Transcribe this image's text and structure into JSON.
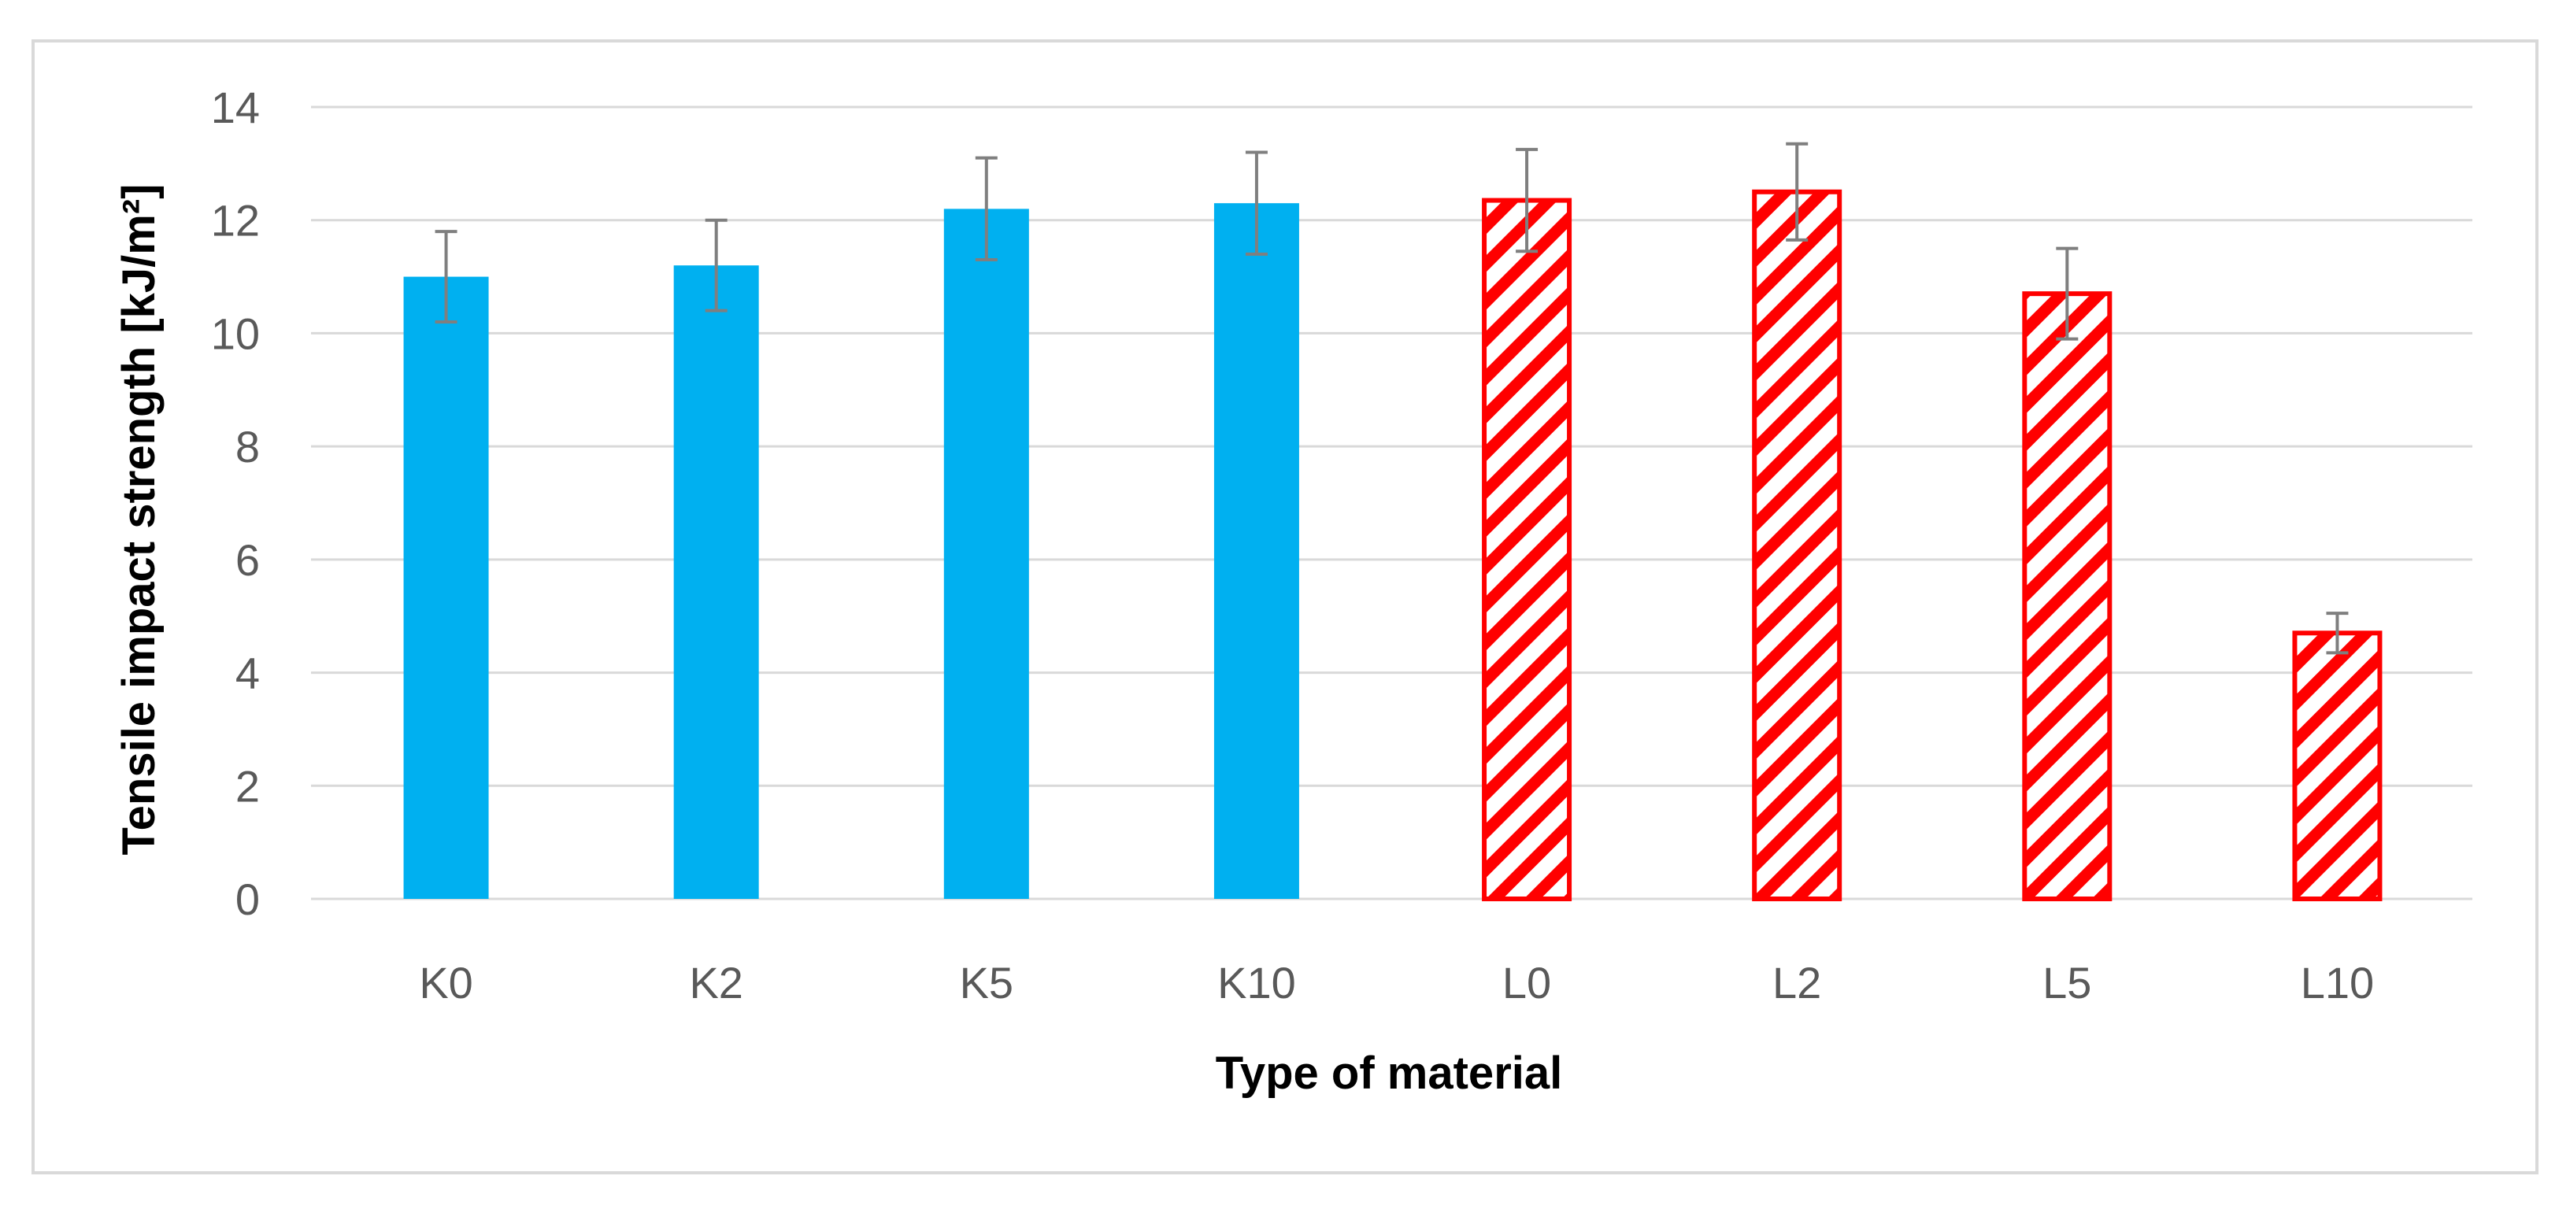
{
  "chart_data": {
    "type": "bar",
    "title": "",
    "xlabel": "Type of material",
    "ylabel": "Tensile impact strength  [kJ/m²]",
    "ylim": [
      0,
      14
    ],
    "yticks": [
      0,
      2,
      4,
      6,
      8,
      10,
      12,
      14
    ],
    "ytick_labels": [
      "0",
      "2",
      "4",
      "6",
      "8",
      "10",
      "12",
      "14"
    ],
    "grid": true,
    "legend": "none",
    "categories": [
      "K0",
      "K2",
      "K5",
      "K10",
      "L0",
      "L2",
      "L5",
      "L10"
    ],
    "values": [
      11.0,
      11.2,
      12.2,
      12.3,
      12.35,
      12.5,
      10.7,
      4.7
    ],
    "errors": [
      0.8,
      0.8,
      0.9,
      0.9,
      0.9,
      0.85,
      0.8,
      0.35
    ],
    "series_style": [
      "solid",
      "solid",
      "solid",
      "solid",
      "hatched",
      "hatched",
      "hatched",
      "hatched"
    ]
  },
  "colors": {
    "solid_fill": "#00b0f0",
    "hatch_stroke": "#ff0000",
    "hatch_bg": "#ffffff",
    "error_bar": "#7f7f7f",
    "grid": "#d9d9d9"
  }
}
